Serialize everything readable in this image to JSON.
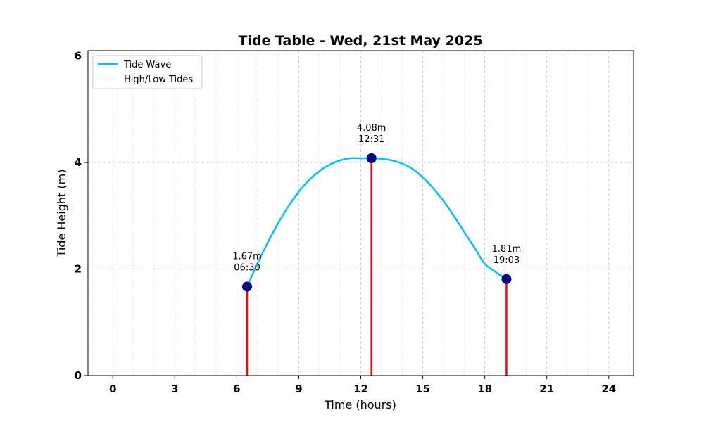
{
  "chart_data": {
    "type": "line",
    "title": "Tide Table - Wed, 21st May 2025",
    "xlabel": "Time (hours)",
    "ylabel": "Tide Height (m)",
    "xlim": [
      -1.2,
      25.2
    ],
    "ylim": [
      0,
      6.1
    ],
    "xticks": [
      0,
      3,
      6,
      9,
      12,
      15,
      18,
      21,
      24
    ],
    "yticks": [
      0,
      2,
      4,
      6
    ],
    "minor_x_grid": true,
    "grid": true,
    "legend_position": "top-left",
    "legend": [
      "Tide Wave",
      "High/Low Tides"
    ],
    "series": [
      {
        "name": "Tide Wave",
        "color": "#00bfff",
        "x": [
          6.5,
          7,
          7.5,
          8,
          8.5,
          9,
          9.5,
          10,
          10.5,
          11,
          11.5,
          12,
          12.52,
          13,
          13.5,
          14,
          14.5,
          15,
          15.5,
          16,
          16.5,
          17,
          17.5,
          18,
          18.5,
          19.05
        ],
        "y": [
          1.67,
          2.1,
          2.5,
          2.86,
          3.18,
          3.45,
          3.67,
          3.84,
          3.96,
          4.04,
          4.08,
          4.08,
          4.08,
          4.07,
          4.04,
          3.98,
          3.88,
          3.72,
          3.52,
          3.28,
          3.0,
          2.7,
          2.4,
          2.1,
          1.95,
          1.81
        ]
      }
    ],
    "tides": [
      {
        "time": 6.5,
        "height": 1.67,
        "label_height": "1.67m",
        "label_time": "06:30"
      },
      {
        "time": 12.517,
        "height": 4.08,
        "label_height": "4.08m",
        "label_time": "12:31"
      },
      {
        "time": 19.05,
        "height": 1.81,
        "label_height": "1.81m",
        "label_time": "19:03"
      }
    ],
    "tide_line_color": "#ff0000",
    "tide_marker_color": "#00008b"
  }
}
